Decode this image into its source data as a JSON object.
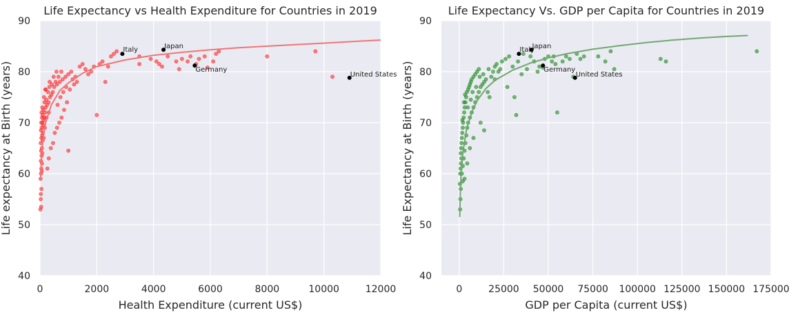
{
  "chart_data": [
    {
      "type": "scatter",
      "title": "Life Expectancy vs Health Expenditure for Countries in 2019",
      "xlabel": "Health Expenditure (current US$)",
      "ylabel": "Life expectancy at Birth (years)",
      "xlim": [
        0,
        12000
      ],
      "ylim": [
        40,
        90
      ],
      "xticks": [
        0,
        2000,
        4000,
        6000,
        8000,
        10000,
        12000
      ],
      "yticks": [
        40,
        50,
        60,
        70,
        80,
        90
      ],
      "grid": true,
      "point_color": "#ff2a2a",
      "fit_color": "#f07575",
      "points": [
        [
          15,
          53
        ],
        [
          25,
          55
        ],
        [
          30,
          56
        ],
        [
          40,
          53.5
        ],
        [
          50,
          57
        ],
        [
          20,
          59
        ],
        [
          35,
          60
        ],
        [
          45,
          61
        ],
        [
          60,
          60.5
        ],
        [
          70,
          62
        ],
        [
          30,
          62.5
        ],
        [
          55,
          63.5
        ],
        [
          80,
          64
        ],
        [
          40,
          64.5
        ],
        [
          65,
          65
        ],
        [
          25,
          66
        ],
        [
          90,
          66.5
        ],
        [
          50,
          67
        ],
        [
          75,
          67.5
        ],
        [
          100,
          68
        ],
        [
          35,
          68.5
        ],
        [
          60,
          69
        ],
        [
          110,
          69.5
        ],
        [
          45,
          70
        ],
        [
          85,
          70
        ],
        [
          130,
          70.5
        ],
        [
          70,
          71
        ],
        [
          150,
          71
        ],
        [
          95,
          71.5
        ],
        [
          55,
          72
        ],
        [
          180,
          72
        ],
        [
          120,
          72.5
        ],
        [
          200,
          73
        ],
        [
          80,
          73
        ],
        [
          250,
          73.5
        ],
        [
          160,
          74
        ],
        [
          300,
          74
        ],
        [
          220,
          74.5
        ],
        [
          350,
          75
        ],
        [
          140,
          75
        ],
        [
          400,
          75.5
        ],
        [
          280,
          76
        ],
        [
          450,
          76
        ],
        [
          190,
          76.5
        ],
        [
          500,
          77
        ],
        [
          330,
          77
        ],
        [
          600,
          77.5
        ],
        [
          420,
          77.5
        ],
        [
          700,
          78
        ],
        [
          550,
          78
        ],
        [
          800,
          78.5
        ],
        [
          650,
          79
        ],
        [
          900,
          79
        ],
        [
          1000,
          79.5
        ],
        [
          750,
          80
        ],
        [
          1100,
          80
        ],
        [
          1200,
          77.5
        ],
        [
          1300,
          78
        ],
        [
          1400,
          81
        ],
        [
          1500,
          81.5
        ],
        [
          1600,
          80.5
        ],
        [
          1700,
          79.5
        ],
        [
          1800,
          80
        ],
        [
          1900,
          81
        ],
        [
          2100,
          81.5
        ],
        [
          2200,
          82
        ],
        [
          2400,
          81
        ],
        [
          2500,
          83
        ],
        [
          2600,
          83.5
        ],
        [
          2700,
          84
        ],
        [
          260,
          61
        ],
        [
          310,
          63
        ],
        [
          380,
          65
        ],
        [
          460,
          66
        ],
        [
          520,
          68
        ],
        [
          600,
          69
        ],
        [
          680,
          70
        ],
        [
          760,
          71
        ],
        [
          850,
          72.5
        ],
        [
          950,
          74
        ],
        [
          1000,
          64.5
        ],
        [
          2000,
          71.5
        ],
        [
          2300,
          78
        ],
        [
          620,
          73.5
        ],
        [
          720,
          75
        ],
        [
          820,
          76
        ],
        [
          920,
          77
        ],
        [
          1050,
          76.5
        ],
        [
          1150,
          78.5
        ],
        [
          1250,
          79
        ],
        [
          3500,
          83
        ],
        [
          3500,
          81.5
        ],
        [
          3900,
          82.5
        ],
        [
          4100,
          82
        ],
        [
          4200,
          81.5
        ],
        [
          4300,
          81
        ],
        [
          4500,
          83
        ],
        [
          4800,
          82
        ],
        [
          4900,
          80.5
        ],
        [
          5000,
          82.5
        ],
        [
          5200,
          82
        ],
        [
          5300,
          83
        ],
        [
          5500,
          81.5
        ],
        [
          5600,
          82.5
        ],
        [
          5800,
          83
        ],
        [
          5900,
          80.8
        ],
        [
          6100,
          82
        ],
        [
          6200,
          83.5
        ],
        [
          6300,
          84
        ],
        [
          8000,
          83
        ],
        [
          9700,
          84
        ],
        [
          10300,
          79
        ],
        [
          200,
          76.5
        ],
        [
          340,
          78
        ],
        [
          480,
          79
        ],
        [
          580,
          80
        ],
        [
          230,
          71
        ],
        [
          170,
          69
        ],
        [
          130,
          67
        ],
        [
          310,
          72
        ]
      ],
      "fit_curve": [
        [
          20,
          59
        ],
        [
          50,
          63
        ],
        [
          100,
          66.5
        ],
        [
          200,
          70
        ],
        [
          400,
          73.5
        ],
        [
          700,
          76.3
        ],
        [
          1000,
          77.8
        ],
        [
          1500,
          79.7
        ],
        [
          2000,
          81
        ],
        [
          3000,
          82.3
        ],
        [
          4000,
          83.2
        ],
        [
          5000,
          83.8
        ],
        [
          6000,
          84.3
        ],
        [
          7000,
          84.7
        ],
        [
          8000,
          85
        ],
        [
          9000,
          85.3
        ],
        [
          10000,
          85.6
        ],
        [
          11000,
          85.9
        ],
        [
          12000,
          86.2
        ]
      ],
      "highlights": [
        {
          "name": "Italy",
          "x": 2900,
          "y": 83.5
        },
        {
          "name": "Japan",
          "x": 4350,
          "y": 84.3
        },
        {
          "name": "Germany",
          "x": 5450,
          "y": 81.2
        },
        {
          "name": "United States",
          "x": 10900,
          "y": 78.8
        }
      ]
    },
    {
      "type": "scatter",
      "title": "Life Expectancy Vs. GDP per Capita for Countries in 2019",
      "xlabel": "GDP per Capita (current US$)",
      "ylabel": "Life Expectancy at Birth (years)",
      "xlim": [
        -10000,
        175000
      ],
      "ylim": [
        40,
        90
      ],
      "xticks": [
        0,
        25000,
        50000,
        75000,
        100000,
        125000,
        150000,
        175000
      ],
      "yticks": [
        40,
        50,
        60,
        70,
        80,
        90
      ],
      "grid": true,
      "point_color": "#1f8a1f",
      "fit_color": "#6fa86f",
      "points": [
        [
          500,
          53
        ],
        [
          700,
          55
        ],
        [
          900,
          57
        ],
        [
          400,
          58
        ],
        [
          600,
          60
        ],
        [
          800,
          61
        ],
        [
          1000,
          62
        ],
        [
          1200,
          63
        ],
        [
          900,
          64
        ],
        [
          1100,
          65
        ],
        [
          1300,
          66
        ],
        [
          1500,
          67
        ],
        [
          1700,
          68
        ],
        [
          2000,
          69
        ],
        [
          2200,
          70
        ],
        [
          2500,
          71
        ],
        [
          2800,
          72
        ],
        [
          3100,
          73
        ],
        [
          3500,
          74
        ],
        [
          3900,
          75
        ],
        [
          4300,
          76
        ],
        [
          5000,
          76.5
        ],
        [
          5500,
          77
        ],
        [
          6000,
          77.5
        ],
        [
          6500,
          78
        ],
        [
          7000,
          78.5
        ],
        [
          8000,
          79
        ],
        [
          9000,
          79.5
        ],
        [
          10000,
          80
        ],
        [
          11000,
          80.5
        ],
        [
          1500,
          60
        ],
        [
          2000,
          61.5
        ],
        [
          2500,
          63
        ],
        [
          3000,
          64.5
        ],
        [
          3500,
          66
        ],
        [
          4000,
          67.5
        ],
        [
          4500,
          69
        ],
        [
          5000,
          70
        ],
        [
          6000,
          71
        ],
        [
          7000,
          72
        ],
        [
          8000,
          73
        ],
        [
          9000,
          74
        ],
        [
          10000,
          75
        ],
        [
          11000,
          76
        ],
        [
          12000,
          77
        ],
        [
          13000,
          77.5
        ],
        [
          14000,
          78
        ],
        [
          15000,
          78.5
        ],
        [
          16000,
          76
        ],
        [
          17000,
          75
        ],
        [
          18000,
          79
        ],
        [
          19000,
          80
        ],
        [
          20000,
          81
        ],
        [
          21000,
          81.5
        ],
        [
          22000,
          80
        ],
        [
          24000,
          82
        ],
        [
          26000,
          82.5
        ],
        [
          28000,
          83
        ],
        [
          30000,
          81
        ],
        [
          32000,
          71.5
        ],
        [
          35000,
          79.5
        ],
        [
          38000,
          80.5
        ],
        [
          40000,
          83
        ],
        [
          42000,
          82
        ],
        [
          45000,
          81
        ],
        [
          48000,
          82.5
        ],
        [
          50000,
          83
        ],
        [
          52000,
          82
        ],
        [
          54000,
          81.5
        ],
        [
          55000,
          72
        ],
        [
          58000,
          82
        ],
        [
          60000,
          83
        ],
        [
          62000,
          82.5
        ],
        [
          64000,
          79
        ],
        [
          66000,
          83.5
        ],
        [
          70000,
          83
        ],
        [
          78000,
          83
        ],
        [
          82000,
          82
        ],
        [
          85000,
          84
        ],
        [
          87000,
          80.5
        ],
        [
          113000,
          82.5
        ],
        [
          116000,
          82
        ],
        [
          167000,
          84
        ],
        [
          3000,
          59
        ],
        [
          2000,
          58.5
        ],
        [
          4500,
          62
        ],
        [
          6000,
          65
        ],
        [
          8000,
          67
        ],
        [
          12000,
          70
        ],
        [
          14000,
          68.5
        ],
        [
          1800,
          70.5
        ],
        [
          2700,
          74
        ],
        [
          3300,
          75.5
        ],
        [
          4800,
          73
        ],
        [
          6500,
          74.5
        ],
        [
          7500,
          76
        ],
        [
          9500,
          77
        ],
        [
          11500,
          79
        ],
        [
          13500,
          79.5
        ],
        [
          16500,
          80.5
        ],
        [
          20000,
          78.5
        ],
        [
          23000,
          80.5
        ],
        [
          27000,
          77
        ],
        [
          31000,
          75
        ],
        [
          33000,
          82
        ],
        [
          36000,
          83.5
        ],
        [
          44000,
          80
        ],
        [
          47000,
          80.8
        ],
        [
          53000,
          83
        ],
        [
          68000,
          82.5
        ]
      ],
      "fit_curve": [
        [
          300,
          51.5
        ],
        [
          600,
          56
        ],
        [
          1000,
          59.5
        ],
        [
          2000,
          64
        ],
        [
          4000,
          68.5
        ],
        [
          7000,
          72
        ],
        [
          10000,
          74.3
        ],
        [
          15000,
          76.7
        ],
        [
          20000,
          78.3
        ],
        [
          30000,
          80.3
        ],
        [
          40000,
          81.7
        ],
        [
          50000,
          82.7
        ],
        [
          60000,
          83.5
        ],
        [
          75000,
          84.4
        ],
        [
          90000,
          85.1
        ],
        [
          105000,
          85.7
        ],
        [
          120000,
          86.2
        ],
        [
          135000,
          86.6
        ],
        [
          150000,
          86.9
        ],
        [
          162000,
          87.1
        ]
      ],
      "highlights": [
        {
          "name": "Italy",
          "x": 33500,
          "y": 83.5
        },
        {
          "name": "Japan",
          "x": 40500,
          "y": 84.3
        },
        {
          "name": "Germany",
          "x": 47000,
          "y": 81.2
        },
        {
          "name": "United States",
          "x": 65000,
          "y": 78.8
        }
      ]
    }
  ]
}
